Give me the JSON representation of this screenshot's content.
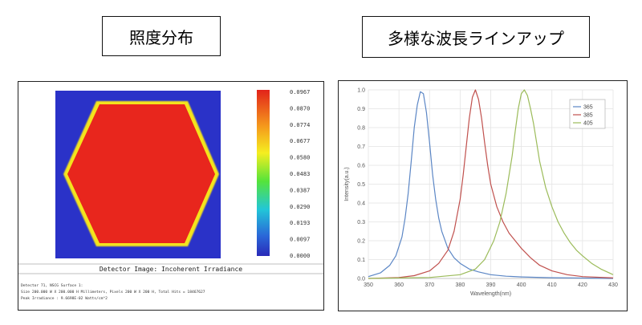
{
  "titles": {
    "left": "照度分布",
    "right": "多様な波長ラインアップ"
  },
  "detector": {
    "caption": "Detector Image: Incoherent Irradiance",
    "info_lines": [
      "Detector 71, NSCG Surface 1:",
      "Size 200.000 W X 200.000 H Millimeters, Pixels 200 W X 200 H, Total Hits = 18467627",
      "Peak Irradiance : 9.6698E-02 Watts/cm^2"
    ],
    "colorbar_labels": [
      "0.0967",
      "0.0870",
      "0.0774",
      "0.0677",
      "0.0580",
      "0.0483",
      "0.0387",
      "0.0290",
      "0.0193",
      "0.0097",
      "0.0000"
    ],
    "colors": {
      "background": "#2a32c8",
      "fill": "#e8261d",
      "edge": "#f4e41c"
    }
  },
  "chart_data": {
    "type": "line",
    "title": "",
    "xlabel": "Wavelength(nm)",
    "ylabel": "Intensity(a.u.)",
    "xlim": [
      350,
      430
    ],
    "ylim": [
      0,
      1.0
    ],
    "xticks": [
      "350",
      "360",
      "370",
      "380",
      "390",
      "400",
      "410",
      "420",
      "430"
    ],
    "yticks": [
      "0.0",
      "0.1",
      "0.2",
      "0.3",
      "0.4",
      "0.5",
      "0.6",
      "0.7",
      "0.8",
      "0.9",
      "1.0"
    ],
    "grid": true,
    "legend_position": "top-right",
    "series": [
      {
        "name": "365",
        "color": "#5b86c5",
        "x": [
          350,
          354,
          357,
          359,
          361,
          362,
          363,
          364,
          365,
          366,
          367,
          368,
          369,
          370,
          371,
          372,
          373,
          374,
          376,
          378,
          380,
          383,
          386,
          390,
          395,
          400,
          410,
          420,
          430
        ],
        "y": [
          0.01,
          0.03,
          0.07,
          0.12,
          0.22,
          0.32,
          0.45,
          0.62,
          0.8,
          0.92,
          0.99,
          0.98,
          0.88,
          0.72,
          0.55,
          0.42,
          0.32,
          0.25,
          0.16,
          0.11,
          0.08,
          0.05,
          0.035,
          0.02,
          0.012,
          0.008,
          0.004,
          0.002,
          0.0
        ]
      },
      {
        "name": "385",
        "color": "#c0504d",
        "x": [
          350,
          360,
          365,
          370,
          373,
          376,
          378,
          380,
          381,
          382,
          383,
          384,
          385,
          386,
          387,
          388,
          389,
          390,
          392,
          394,
          396,
          398,
          400,
          403,
          406,
          410,
          415,
          420,
          430
        ],
        "y": [
          0.0,
          0.005,
          0.015,
          0.04,
          0.08,
          0.15,
          0.25,
          0.42,
          0.55,
          0.7,
          0.85,
          0.96,
          1.0,
          0.95,
          0.85,
          0.72,
          0.6,
          0.5,
          0.38,
          0.3,
          0.24,
          0.2,
          0.16,
          0.11,
          0.07,
          0.04,
          0.02,
          0.01,
          0.003
        ]
      },
      {
        "name": "405",
        "color": "#9bbb59",
        "x": [
          350,
          370,
          380,
          385,
          388,
          391,
          393,
          395,
          397,
          398,
          399,
          400,
          401,
          402,
          403,
          404,
          405,
          406,
          408,
          410,
          412,
          414,
          416,
          418,
          420,
          423,
          426,
          430
        ],
        "y": [
          0.0,
          0.005,
          0.02,
          0.05,
          0.1,
          0.2,
          0.3,
          0.45,
          0.65,
          0.78,
          0.9,
          0.98,
          1.0,
          0.97,
          0.9,
          0.82,
          0.72,
          0.62,
          0.48,
          0.38,
          0.3,
          0.24,
          0.19,
          0.15,
          0.12,
          0.08,
          0.05,
          0.02
        ]
      }
    ]
  }
}
